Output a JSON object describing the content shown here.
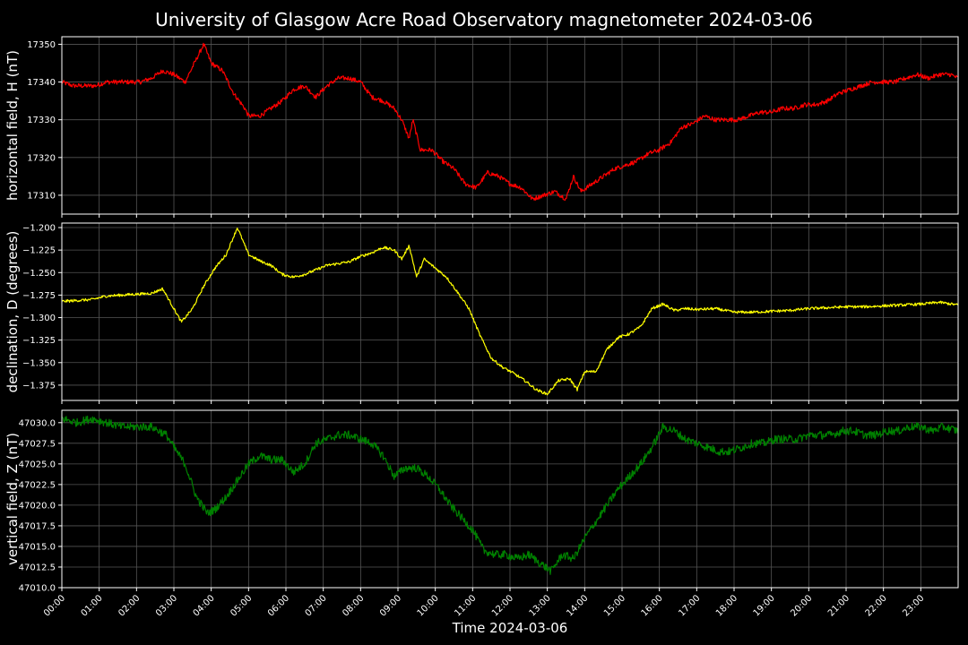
{
  "title": "University of Glasgow Acre Road Observatory magnetometer 2024-03-06",
  "xlabel": "Time 2024-03-06",
  "colors": {
    "background": "#000000",
    "grid": "#555555",
    "axes": "#ffffff",
    "H": "#ff0000",
    "D": "#ffff00",
    "Z": "#008000"
  },
  "chart_data": {
    "type": "line",
    "x_unit": "hours since 2024-03-06 00:00",
    "x_range": [
      0,
      24
    ],
    "x_ticks": [
      "00:00",
      "01:00",
      "02:00",
      "03:00",
      "04:00",
      "05:00",
      "06:00",
      "07:00",
      "08:00",
      "09:00",
      "10:00",
      "11:00",
      "12:00",
      "13:00",
      "14:00",
      "15:00",
      "16:00",
      "17:00",
      "18:00",
      "19:00",
      "20:00",
      "21:00",
      "22:00",
      "23:00"
    ],
    "grid": true,
    "panels": [
      {
        "name": "H",
        "ylabel": "horizontal field, H (nT)",
        "ylim": [
          17305,
          17352
        ],
        "yticks": [
          17310,
          17320,
          17330,
          17340,
          17350
        ],
        "ytick_labels": [
          "17310",
          "17320",
          "17330",
          "17340",
          "17350"
        ],
        "color": "#ff0000",
        "noise": 0.6,
        "x": [
          0,
          0.3,
          0.6,
          0.9,
          1.2,
          1.5,
          1.8,
          2.1,
          2.4,
          2.7,
          3.0,
          3.3,
          3.6,
          3.8,
          4.0,
          4.3,
          4.6,
          4.9,
          5.0,
          5.3,
          5.6,
          5.9,
          6.2,
          6.5,
          6.8,
          7.1,
          7.4,
          7.7,
          8.0,
          8.3,
          8.6,
          8.9,
          9.1,
          9.3,
          9.4,
          9.6,
          9.9,
          10.2,
          10.5,
          10.8,
          11.1,
          11.4,
          11.7,
          12.0,
          12.3,
          12.6,
          12.9,
          13.2,
          13.5,
          13.7,
          13.9,
          14.2,
          14.5,
          14.8,
          15.1,
          15.4,
          15.7,
          16.0,
          16.3,
          16.6,
          16.9,
          17.2,
          17.5,
          17.8,
          18.1,
          18.4,
          18.7,
          19.0,
          19.3,
          19.6,
          19.9,
          20.2,
          20.5,
          20.8,
          21.1,
          21.4,
          21.7,
          22.0,
          22.3,
          22.6,
          22.9,
          23.2,
          23.5,
          23.8,
          24.0
        ],
        "y": [
          17340,
          17339,
          17339,
          17339,
          17340,
          17340,
          17340,
          17340,
          17341,
          17343,
          17342,
          17340,
          17346,
          17350,
          17345,
          17343,
          17337,
          17333,
          17331,
          17331,
          17333,
          17335,
          17338,
          17339,
          17336,
          17339,
          17341,
          17341,
          17340,
          17336,
          17335,
          17333,
          17330,
          17325,
          17330,
          17322,
          17322,
          17319,
          17317,
          17313,
          17312,
          17316,
          17315,
          17313,
          17312,
          17309,
          17310,
          17311,
          17309,
          17315,
          17311,
          17313,
          17315,
          17317,
          17318,
          17319,
          17321,
          17322,
          17324,
          17328,
          17329,
          17331,
          17330,
          17330,
          17330,
          17331,
          17332,
          17332,
          17333,
          17333,
          17334,
          17334,
          17335,
          17337,
          17338,
          17339,
          17340,
          17340,
          17340,
          17341,
          17342,
          17341,
          17342,
          17342,
          17341
        ]
      },
      {
        "name": "D",
        "ylabel": "declination, D (degrees)",
        "ylim": [
          -1.392,
          -1.195
        ],
        "yticks": [
          -1.375,
          -1.35,
          -1.325,
          -1.3,
          -1.275,
          -1.25,
          -1.225,
          -1.2
        ],
        "ytick_labels": [
          "−1.375",
          "−1.350",
          "−1.325",
          "−1.300",
          "−1.275",
          "−1.250",
          "−1.225",
          "−1.200"
        ],
        "color": "#ffff00",
        "noise": 0.0015,
        "x": [
          0,
          0.4,
          0.8,
          1.2,
          1.6,
          2.0,
          2.4,
          2.7,
          3.0,
          3.2,
          3.5,
          3.8,
          4.1,
          4.4,
          4.7,
          5.0,
          5.3,
          5.6,
          5.9,
          6.2,
          6.5,
          6.8,
          7.1,
          7.4,
          7.7,
          8.0,
          8.3,
          8.6,
          8.9,
          9.1,
          9.3,
          9.5,
          9.7,
          10.0,
          10.3,
          10.6,
          10.9,
          11.2,
          11.5,
          11.8,
          12.1,
          12.4,
          12.7,
          13.0,
          13.3,
          13.6,
          13.8,
          14.0,
          14.3,
          14.6,
          14.9,
          15.2,
          15.5,
          15.8,
          16.1,
          16.4,
          16.7,
          17.0,
          17.5,
          18.0,
          18.5,
          19.0,
          19.5,
          20.0,
          20.5,
          21.0,
          21.5,
          22.0,
          22.5,
          23.0,
          23.5,
          24.0
        ],
        "y": [
          -1.282,
          -1.281,
          -1.28,
          -1.276,
          -1.275,
          -1.274,
          -1.273,
          -1.268,
          -1.29,
          -1.305,
          -1.29,
          -1.265,
          -1.245,
          -1.23,
          -1.2,
          -1.23,
          -1.237,
          -1.242,
          -1.252,
          -1.255,
          -1.252,
          -1.247,
          -1.242,
          -1.24,
          -1.238,
          -1.232,
          -1.228,
          -1.222,
          -1.225,
          -1.235,
          -1.22,
          -1.255,
          -1.235,
          -1.245,
          -1.255,
          -1.272,
          -1.29,
          -1.32,
          -1.345,
          -1.355,
          -1.362,
          -1.37,
          -1.38,
          -1.385,
          -1.37,
          -1.368,
          -1.38,
          -1.36,
          -1.36,
          -1.335,
          -1.322,
          -1.318,
          -1.31,
          -1.29,
          -1.285,
          -1.292,
          -1.29,
          -1.291,
          -1.29,
          -1.294,
          -1.294,
          -1.293,
          -1.292,
          -1.29,
          -1.289,
          -1.288,
          -1.288,
          -1.287,
          -1.286,
          -1.285,
          -1.283,
          -1.286
        ]
      },
      {
        "name": "Z",
        "ylabel": "vertical field, Z (nT)",
        "ylim": [
          47010,
          47031.5
        ],
        "yticks": [
          47010,
          47012.5,
          47015,
          47017.5,
          47020,
          47022.5,
          47025,
          47027.5,
          47030
        ],
        "ytick_labels": [
          "47010.0",
          "47012.5",
          "47015.0",
          "47017.5",
          "47020.0",
          "47022.5",
          "47025.0",
          "47027.5",
          "47030.0"
        ],
        "color": "#008000",
        "noise": 0.5,
        "x": [
          0,
          0.4,
          0.8,
          1.2,
          1.6,
          2.0,
          2.4,
          2.8,
          3.0,
          3.3,
          3.6,
          3.9,
          4.1,
          4.4,
          4.7,
          5.0,
          5.3,
          5.6,
          5.9,
          6.2,
          6.5,
          6.8,
          7.1,
          7.4,
          7.7,
          8.0,
          8.3,
          8.6,
          8.9,
          9.2,
          9.5,
          9.8,
          10.1,
          10.4,
          10.7,
          11.0,
          11.3,
          11.6,
          11.9,
          12.2,
          12.5,
          12.8,
          13.1,
          13.4,
          13.7,
          14.0,
          14.3,
          14.6,
          14.9,
          15.2,
          15.5,
          15.8,
          16.1,
          16.4,
          16.7,
          17.0,
          17.3,
          17.6,
          17.9,
          18.2,
          18.5,
          18.8,
          19.1,
          19.4,
          19.7,
          20.0,
          20.3,
          20.6,
          20.9,
          21.2,
          21.5,
          21.8,
          22.1,
          22.4,
          22.7,
          23.0,
          23.3,
          23.6,
          24.0
        ],
        "y": [
          47030.5,
          47030,
          47030.5,
          47030,
          47029.5,
          47029.5,
          47029.5,
          47028.5,
          47027,
          47025,
          47021,
          47019,
          47019.5,
          47021,
          47023,
          47025,
          47026,
          47025.5,
          47025.5,
          47024,
          47025,
          47027.5,
          47028,
          47028.5,
          47028.5,
          47028,
          47027.5,
          47026,
          47023.5,
          47024.5,
          47024.5,
          47023.5,
          47022,
          47020,
          47018.5,
          47017,
          47014.5,
          47014,
          47014,
          47013.5,
          47014,
          47013,
          47012,
          47014,
          47013.5,
          47016,
          47018,
          47020,
          47022,
          47023.5,
          47025,
          47027,
          47029.5,
          47029,
          47028,
          47027.5,
          47027,
          47026.5,
          47026.5,
          47027,
          47027.5,
          47027.5,
          47028,
          47028,
          47028,
          47028.5,
          47028.5,
          47028.5,
          47029,
          47029,
          47028.5,
          47028.5,
          47029,
          47029,
          47029.5,
          47029.5,
          47029,
          47029.5,
          47029
        ]
      }
    ]
  }
}
